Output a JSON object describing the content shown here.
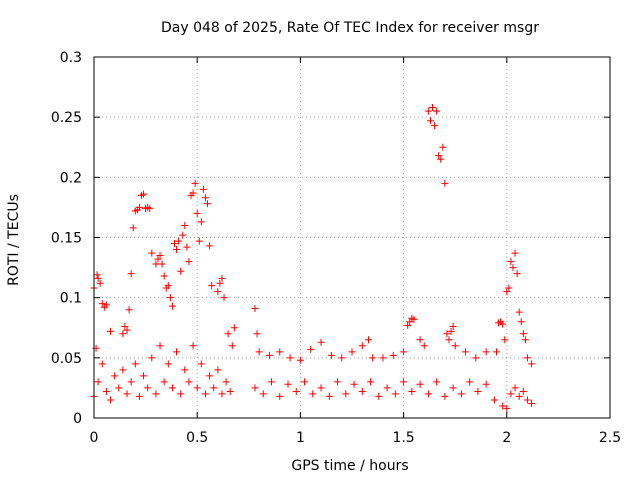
{
  "chart_data": {
    "type": "scatter",
    "title": "Day 048 of 2025, Rate Of TEC Index for receiver msgr",
    "xlabel": "GPS time / hours",
    "ylabel": "ROTI / TECUs",
    "xlim": [
      0,
      2.5
    ],
    "ylim": [
      0,
      0.3
    ],
    "xticks": [
      0,
      0.5,
      1,
      1.5,
      2,
      2.5
    ],
    "xtick_labels": [
      "0",
      "0.5",
      "1",
      "1.5",
      "2",
      "2.5"
    ],
    "yticks": [
      0,
      0.05,
      0.1,
      0.15,
      0.2,
      0.25,
      0.3
    ],
    "ytick_labels": [
      "0",
      "0.05",
      "0.1",
      "0.15",
      "0.2",
      "0.25",
      "0.3"
    ],
    "grid": true,
    "marker": "+",
    "colors": {
      "marker": "#ff0000",
      "grid": "#a0a0a0",
      "axes": "#000000"
    },
    "series": [
      {
        "name": "ROTI",
        "points": [
          [
            0.0,
            0.108
          ],
          [
            0.01,
            0.058
          ],
          [
            0.015,
            0.119
          ],
          [
            0.02,
            0.116
          ],
          [
            0.03,
            0.112
          ],
          [
            0.04,
            0.095
          ],
          [
            0.05,
            0.092
          ],
          [
            0.06,
            0.094
          ],
          [
            0.08,
            0.072
          ],
          [
            0.14,
            0.07
          ],
          [
            0.15,
            0.076
          ],
          [
            0.16,
            0.073
          ],
          [
            0.17,
            0.09
          ],
          [
            0.18,
            0.12
          ],
          [
            0.19,
            0.158
          ],
          [
            0.2,
            0.172
          ],
          [
            0.21,
            0.173
          ],
          [
            0.22,
            0.175
          ],
          [
            0.23,
            0.185
          ],
          [
            0.24,
            0.186
          ],
          [
            0.25,
            0.174
          ],
          [
            0.26,
            0.175
          ],
          [
            0.27,
            0.174
          ],
          [
            0.28,
            0.137
          ],
          [
            0.3,
            0.128
          ],
          [
            0.31,
            0.132
          ],
          [
            0.32,
            0.135
          ],
          [
            0.33,
            0.128
          ],
          [
            0.34,
            0.118
          ],
          [
            0.35,
            0.108
          ],
          [
            0.36,
            0.11
          ],
          [
            0.37,
            0.1
          ],
          [
            0.38,
            0.093
          ],
          [
            0.39,
            0.145
          ],
          [
            0.4,
            0.14
          ],
          [
            0.41,
            0.147
          ],
          [
            0.42,
            0.122
          ],
          [
            0.43,
            0.152
          ],
          [
            0.44,
            0.16
          ],
          [
            0.45,
            0.142
          ],
          [
            0.46,
            0.13
          ],
          [
            0.47,
            0.185
          ],
          [
            0.48,
            0.187
          ],
          [
            0.49,
            0.195
          ],
          [
            0.5,
            0.17
          ],
          [
            0.51,
            0.147
          ],
          [
            0.52,
            0.163
          ],
          [
            0.53,
            0.19
          ],
          [
            0.54,
            0.183
          ],
          [
            0.55,
            0.178
          ],
          [
            0.56,
            0.143
          ],
          [
            0.57,
            0.11
          ],
          [
            0.6,
            0.105
          ],
          [
            0.61,
            0.112
          ],
          [
            0.62,
            0.116
          ],
          [
            0.63,
            0.1
          ],
          [
            0.65,
            0.07
          ],
          [
            0.67,
            0.06
          ],
          [
            0.68,
            0.075
          ],
          [
            0.78,
            0.091
          ],
          [
            0.79,
            0.07
          ],
          [
            0.8,
            0.055
          ],
          [
            0.85,
            0.052
          ],
          [
            0.9,
            0.055
          ],
          [
            0.95,
            0.05
          ],
          [
            1.0,
            0.048
          ],
          [
            1.05,
            0.057
          ],
          [
            1.1,
            0.063
          ],
          [
            1.15,
            0.052
          ],
          [
            1.2,
            0.05
          ],
          [
            1.25,
            0.055
          ],
          [
            1.3,
            0.06
          ],
          [
            1.33,
            0.065
          ],
          [
            1.35,
            0.05
          ],
          [
            1.4,
            0.05
          ],
          [
            1.45,
            0.052
          ],
          [
            1.5,
            0.055
          ],
          [
            1.52,
            0.077
          ],
          [
            1.53,
            0.08
          ],
          [
            1.54,
            0.083
          ],
          [
            1.55,
            0.082
          ],
          [
            1.58,
            0.065
          ],
          [
            1.6,
            0.06
          ],
          [
            1.62,
            0.255
          ],
          [
            1.63,
            0.247
          ],
          [
            1.64,
            0.258
          ],
          [
            1.65,
            0.243
          ],
          [
            1.66,
            0.255
          ],
          [
            1.67,
            0.218
          ],
          [
            1.68,
            0.215
          ],
          [
            1.69,
            0.225
          ],
          [
            1.7,
            0.195
          ],
          [
            1.71,
            0.07
          ],
          [
            1.72,
            0.065
          ],
          [
            1.73,
            0.072
          ],
          [
            1.74,
            0.076
          ],
          [
            1.75,
            0.06
          ],
          [
            1.8,
            0.055
          ],
          [
            1.85,
            0.05
          ],
          [
            1.9,
            0.055
          ],
          [
            1.95,
            0.055
          ],
          [
            1.96,
            0.079
          ],
          [
            1.97,
            0.08
          ],
          [
            1.98,
            0.078
          ],
          [
            1.99,
            0.065
          ],
          [
            2.0,
            0.105
          ],
          [
            2.01,
            0.108
          ],
          [
            2.02,
            0.13
          ],
          [
            2.03,
            0.125
          ],
          [
            2.04,
            0.137
          ],
          [
            2.05,
            0.12
          ],
          [
            2.06,
            0.088
          ],
          [
            2.07,
            0.08
          ],
          [
            2.08,
            0.07
          ],
          [
            2.09,
            0.065
          ],
          [
            2.1,
            0.05
          ],
          [
            2.12,
            0.045
          ],
          [
            0.0,
            0.018
          ],
          [
            0.02,
            0.03
          ],
          [
            0.04,
            0.045
          ],
          [
            0.06,
            0.022
          ],
          [
            0.08,
            0.015
          ],
          [
            0.1,
            0.035
          ],
          [
            0.12,
            0.025
          ],
          [
            0.14,
            0.04
          ],
          [
            0.16,
            0.02
          ],
          [
            0.18,
            0.03
          ],
          [
            0.2,
            0.045
          ],
          [
            0.22,
            0.018
          ],
          [
            0.24,
            0.035
          ],
          [
            0.26,
            0.025
          ],
          [
            0.28,
            0.05
          ],
          [
            0.3,
            0.02
          ],
          [
            0.32,
            0.06
          ],
          [
            0.34,
            0.03
          ],
          [
            0.36,
            0.045
          ],
          [
            0.38,
            0.025
          ],
          [
            0.4,
            0.055
          ],
          [
            0.42,
            0.02
          ],
          [
            0.44,
            0.04
          ],
          [
            0.46,
            0.03
          ],
          [
            0.48,
            0.06
          ],
          [
            0.5,
            0.025
          ],
          [
            0.52,
            0.045
          ],
          [
            0.54,
            0.02
          ],
          [
            0.56,
            0.035
          ],
          [
            0.58,
            0.025
          ],
          [
            0.6,
            0.04
          ],
          [
            0.62,
            0.02
          ],
          [
            0.64,
            0.03
          ],
          [
            0.66,
            0.022
          ],
          [
            0.78,
            0.025
          ],
          [
            0.82,
            0.02
          ],
          [
            0.86,
            0.03
          ],
          [
            0.9,
            0.018
          ],
          [
            0.94,
            0.028
          ],
          [
            0.98,
            0.022
          ],
          [
            1.02,
            0.03
          ],
          [
            1.06,
            0.02
          ],
          [
            1.1,
            0.025
          ],
          [
            1.14,
            0.018
          ],
          [
            1.18,
            0.03
          ],
          [
            1.22,
            0.02
          ],
          [
            1.26,
            0.028
          ],
          [
            1.3,
            0.022
          ],
          [
            1.34,
            0.03
          ],
          [
            1.38,
            0.018
          ],
          [
            1.42,
            0.025
          ],
          [
            1.46,
            0.02
          ],
          [
            1.5,
            0.03
          ],
          [
            1.54,
            0.022
          ],
          [
            1.58,
            0.028
          ],
          [
            1.62,
            0.02
          ],
          [
            1.66,
            0.03
          ],
          [
            1.7,
            0.018
          ],
          [
            1.74,
            0.025
          ],
          [
            1.78,
            0.02
          ],
          [
            1.82,
            0.03
          ],
          [
            1.86,
            0.022
          ],
          [
            1.9,
            0.028
          ],
          [
            1.94,
            0.015
          ],
          [
            1.98,
            0.01
          ],
          [
            2.0,
            0.008
          ],
          [
            2.02,
            0.02
          ],
          [
            2.04,
            0.025
          ],
          [
            2.06,
            0.018
          ],
          [
            2.08,
            0.022
          ],
          [
            2.1,
            0.015
          ],
          [
            2.12,
            0.012
          ]
        ]
      }
    ]
  }
}
